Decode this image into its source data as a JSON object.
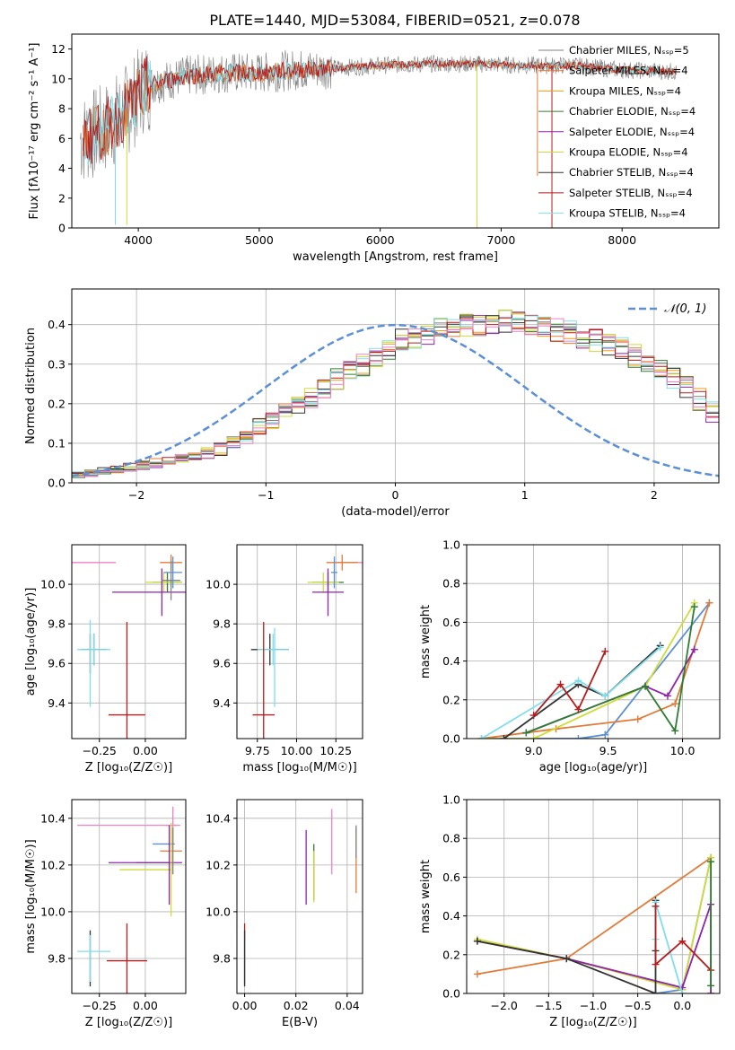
{
  "figure": {
    "title": "PLATE=1440, MJD=53084, FIBERID=0521, z=0.078"
  },
  "colors": {
    "grid": "#b0b0b0",
    "chab_miles": "#808080",
    "salp_miles": "#e07b39",
    "krou_miles": "#f39c12",
    "chab_elodie": "#2e7d32",
    "salp_elodie": "#8e24aa",
    "krou_elodie": "#cddc39",
    "chab_stelib": "#333333",
    "salp_stelib": "#b71c1c",
    "krou_stelib": "#80deea",
    "normal_curve": "#5b8fd6",
    "pink": "#ee82c5",
    "blue": "#5b8fd6",
    "orange": "#e07b39"
  },
  "chart_data": [
    {
      "id": "spectrum",
      "type": "line",
      "title": "",
      "xlabel": "wavelength [Angstrom, rest frame]",
      "ylabel": "Flux [fλ10⁻¹⁷ erg cm⁻² s⁻¹ A⁻¹]",
      "xlim": [
        3450,
        8800
      ],
      "ylim": [
        0,
        13
      ],
      "xticks": [
        4000,
        5000,
        6000,
        7000,
        8000
      ],
      "yticks": [
        0,
        2,
        4,
        6,
        8,
        10,
        12
      ],
      "legend_position": "right",
      "legend": [
        "Chabrier MILES, N_SSP=5",
        "Salpeter MILES, N_SSP=4",
        "Kroupa MILES, N_SSP=4",
        "Chabrier ELODIE, N_SSP=4",
        "Salpeter ELODIE, N_SSP=4",
        "Kroupa ELODIE, N_SSP=4",
        "Chabrier STELIB, N_SSP=4",
        "Salpeter STELIB, N_SSP=4",
        "Kroupa STELIB, N_SSP=4"
      ],
      "legend_colors": [
        "#808080",
        "#e07b39",
        "#f39c12",
        "#2e7d32",
        "#8e24aa",
        "#cddc39",
        "#333333",
        "#b71c1c",
        "#80deea"
      ],
      "continuum": {
        "x": [
          3550,
          3700,
          3850,
          3950,
          4050,
          4200,
          4400,
          4700,
          5000,
          5300,
          5600,
          6000,
          6400,
          6800,
          7200,
          7600,
          8000,
          8400,
          8700
        ],
        "y": [
          6.0,
          6.5,
          7.5,
          8.3,
          9.5,
          9.8,
          10.2,
          10.4,
          10.4,
          10.6,
          10.7,
          10.9,
          11.0,
          11.0,
          10.9,
          10.9,
          10.6,
          10.5,
          10.3
        ]
      },
      "model_lines": [
        "Chabrier MILES",
        "Salpeter MILES",
        "Kroupa STELIB",
        "Salpeter STELIB"
      ],
      "model_line_colors": [
        "#808080",
        "#e07b39",
        "#80deea",
        "#b71c1c"
      ]
    },
    {
      "id": "residuals",
      "type": "histogram",
      "title": "",
      "xlabel": "(data-model)/error",
      "ylabel": "Normed distribution",
      "xlim": [
        -2.5,
        2.5
      ],
      "ylim": [
        0,
        0.49
      ],
      "xticks": [
        -2,
        -1,
        0,
        1,
        2
      ],
      "yticks": [
        0.0,
        0.1,
        0.2,
        0.3,
        0.4
      ],
      "legend": [
        "𝒩(0, 1)"
      ],
      "legend_position": "top-right",
      "bin_edges_start": -2.5,
      "bin_width": 0.1,
      "hist_envelope": [
        0.02,
        0.025,
        0.03,
        0.035,
        0.04,
        0.045,
        0.05,
        0.055,
        0.06,
        0.065,
        0.075,
        0.085,
        0.1,
        0.115,
        0.14,
        0.16,
        0.18,
        0.2,
        0.22,
        0.24,
        0.26,
        0.28,
        0.3,
        0.32,
        0.34,
        0.36,
        0.37,
        0.38,
        0.39,
        0.395,
        0.4,
        0.4,
        0.405,
        0.41,
        0.405,
        0.4,
        0.39,
        0.385,
        0.38,
        0.37,
        0.36,
        0.35,
        0.34,
        0.32,
        0.3,
        0.28,
        0.26,
        0.24,
        0.21,
        0.18,
        0.16,
        0.14,
        0.12,
        0.1,
        0.085,
        0.075,
        0.065,
        0.055,
        0.05,
        0.04,
        0.035,
        0.03,
        0.03,
        0.035,
        0.04,
        0.045,
        0.04,
        0.035,
        0.03,
        0.025
      ]
    },
    {
      "id": "age_Z",
      "type": "errorbar",
      "xlabel": "Z [log₁₀(Z/Z☉)]",
      "ylabel": "age  [log₁₀(age/yr)]",
      "xlim": [
        -0.4,
        0.22
      ],
      "ylim": [
        9.22,
        10.2
      ],
      "xticks": [
        -0.25,
        0.0
      ],
      "yticks": [
        9.4,
        9.6,
        9.8,
        10.0
      ],
      "points": [
        {
          "x": -0.28,
          "xerr": 0.12,
          "y": 10.11,
          "yerr": 0.0,
          "c": "#ee82c5"
        },
        {
          "x": 0.14,
          "xerr": 0.06,
          "y": 10.11,
          "yerr": 0.04,
          "c": "#e07b39"
        },
        {
          "x": 0.12,
          "xerr": 0.08,
          "y": 10.01,
          "yerr": 0.05,
          "c": "#2e7d32"
        },
        {
          "x": 0.1,
          "xerr": 0.1,
          "y": 10.01,
          "yerr": 0.05,
          "c": "#cddc39"
        },
        {
          "x": 0.09,
          "xerr": 0.27,
          "y": 9.96,
          "yerr": 0.12,
          "c": "#8e24aa"
        },
        {
          "x": 0.14,
          "xerr": 0.05,
          "y": 10.02,
          "yerr": 0.1,
          "c": "#808080"
        },
        {
          "x": 0.15,
          "xerr": 0.05,
          "y": 10.06,
          "yerr": 0.08,
          "c": "#5b8fd6"
        },
        {
          "x": -0.3,
          "xerr": 0.0,
          "y": 9.65,
          "yerr": 0.1,
          "c": "#333333"
        },
        {
          "x": -0.28,
          "xerr": 0.07,
          "y": 9.67,
          "yerr": 0.08,
          "c": "#333333"
        },
        {
          "x": -0.28,
          "xerr": 0.09,
          "y": 9.67,
          "yerr": 0.08,
          "c": "#80deea"
        },
        {
          "x": -0.3,
          "xerr": 0.0,
          "y": 9.6,
          "yerr": 0.22,
          "c": "#80deea"
        },
        {
          "x": -0.1,
          "xerr": 0.1,
          "y": 9.34,
          "yerr": 0.47,
          "c": "#b71c1c"
        }
      ]
    },
    {
      "id": "age_mass",
      "type": "errorbar",
      "xlabel": "mass [log₁₀(M/M☉)]",
      "ylabel": "",
      "xlim": [
        9.62,
        10.42
      ],
      "ylim": [
        9.22,
        10.2
      ],
      "xticks": [
        9.75,
        10.0,
        10.25
      ],
      "yticks": [
        9.4,
        9.6,
        9.8,
        10.0
      ],
      "points": [
        {
          "x": 10.36,
          "xerr": 0.1,
          "y": 10.11,
          "yerr": 0.0,
          "c": "#ee82c5"
        },
        {
          "x": 10.29,
          "xerr": 0.1,
          "y": 10.11,
          "yerr": 0.04,
          "c": "#e07b39"
        },
        {
          "x": 10.2,
          "xerr": 0.1,
          "y": 10.01,
          "yerr": 0.05,
          "c": "#2e7d32"
        },
        {
          "x": 10.17,
          "xerr": 0.1,
          "y": 10.01,
          "yerr": 0.05,
          "c": "#cddc39"
        },
        {
          "x": 10.2,
          "xerr": 0.1,
          "y": 9.96,
          "yerr": 0.12,
          "c": "#8e24aa"
        },
        {
          "x": 10.24,
          "xerr": 0.02,
          "y": 10.06,
          "yerr": 0.08,
          "c": "#5b8fd6"
        },
        {
          "x": 9.83,
          "xerr": 0.12,
          "y": 9.67,
          "yerr": 0.08,
          "c": "#333333"
        },
        {
          "x": 9.85,
          "xerr": 0.1,
          "y": 9.67,
          "yerr": 0.08,
          "c": "#80deea"
        },
        {
          "x": 9.86,
          "xerr": 0.0,
          "y": 9.58,
          "yerr": 0.2,
          "c": "#80deea"
        },
        {
          "x": 9.79,
          "xerr": 0.07,
          "y": 9.34,
          "yerr": 0.47,
          "c": "#b71c1c"
        }
      ]
    },
    {
      "id": "weight_age",
      "type": "line",
      "xlabel": "age  [log₁₀(age/yr)]",
      "ylabel": "mass weight",
      "xlim": [
        8.55,
        10.25
      ],
      "ylim": [
        0,
        1.0
      ],
      "xticks": [
        9.0,
        9.5,
        10.0
      ],
      "yticks": [
        0.0,
        0.2,
        0.4,
        0.6,
        0.8,
        1.0
      ],
      "series": [
        {
          "c": "#5b8fd6",
          "x": [
            8.65,
            9.3,
            9.48,
            10.18
          ],
          "y": [
            0.0,
            0.0,
            0.02,
            0.7
          ]
        },
        {
          "c": "#e07b39",
          "x": [
            8.65,
            9.15,
            9.7,
            9.95,
            10.18
          ],
          "y": [
            0.0,
            0.05,
            0.1,
            0.18,
            0.7
          ]
        },
        {
          "c": "#cddc39",
          "x": [
            8.65,
            9.0,
            9.75,
            10.08
          ],
          "y": [
            0.0,
            0.0,
            0.27,
            0.7
          ]
        },
        {
          "c": "#8e24aa",
          "x": [
            8.95,
            9.75,
            9.9,
            10.08
          ],
          "y": [
            0.03,
            0.27,
            0.22,
            0.46
          ]
        },
        {
          "c": "#2e7d32",
          "x": [
            8.95,
            9.75,
            9.95,
            10.08
          ],
          "y": [
            0.03,
            0.27,
            0.04,
            0.68
          ]
        },
        {
          "c": "#333333",
          "x": [
            8.8,
            9.3,
            9.48,
            9.85
          ],
          "y": [
            0.0,
            0.28,
            0.22,
            0.48
          ]
        },
        {
          "c": "#80deea",
          "x": [
            8.65,
            9.3,
            9.48,
            9.85
          ],
          "y": [
            0.0,
            0.3,
            0.22,
            0.47
          ]
        },
        {
          "c": "#b71c1c",
          "x": [
            9.0,
            9.18,
            9.3,
            9.48
          ],
          "y": [
            0.12,
            0.28,
            0.15,
            0.45
          ]
        }
      ]
    },
    {
      "id": "mass_Z",
      "type": "errorbar",
      "xlabel": "Z [log₁₀(Z/Z☉)]",
      "ylabel": "mass [log₁₀(M/M☉)]",
      "xlim": [
        -0.4,
        0.22
      ],
      "ylim": [
        9.65,
        10.48
      ],
      "xticks": [
        -0.25,
        0.0
      ],
      "yticks": [
        9.8,
        10.0,
        10.2,
        10.4
      ],
      "points": [
        {
          "x": -0.1,
          "xerr": 0.27,
          "y": 10.37,
          "yerr": 0.0,
          "c": "#ee82c5"
        },
        {
          "x": 0.15,
          "xerr": 0.04,
          "y": 10.37,
          "yerr": 0.08,
          "c": "#ee82c5"
        },
        {
          "x": 0.1,
          "xerr": 0.06,
          "y": 10.29,
          "yerr": 0.0,
          "c": "#5b8fd6"
        },
        {
          "x": 0.14,
          "xerr": 0.06,
          "y": 10.26,
          "yerr": 0.1,
          "c": "#e07b39"
        },
        {
          "x": 0.05,
          "xerr": 0.1,
          "y": 10.21,
          "yerr": 0.0,
          "c": "#2e7d32"
        },
        {
          "x": 0.0,
          "xerr": 0.2,
          "y": 10.21,
          "yerr": 0.0,
          "c": "#8e24aa"
        },
        {
          "x": 0.0,
          "xerr": 0.14,
          "y": 10.18,
          "yerr": 0.0,
          "c": "#cddc39"
        },
        {
          "x": 0.13,
          "xerr": 0.0,
          "y": 10.2,
          "yerr": 0.17,
          "c": "#8e24aa"
        },
        {
          "x": 0.14,
          "xerr": 0.0,
          "y": 10.18,
          "yerr": 0.2,
          "c": "#cddc39"
        },
        {
          "x": 0.15,
          "xerr": 0.0,
          "y": 10.26,
          "yerr": 0.1,
          "c": "#808080"
        },
        {
          "x": -0.3,
          "xerr": 0.0,
          "y": 9.8,
          "yerr": 0.12,
          "c": "#333333"
        },
        {
          "x": -0.28,
          "xerr": 0.09,
          "y": 9.83,
          "yerr": 0.0,
          "c": "#80deea"
        },
        {
          "x": -0.3,
          "xerr": 0.0,
          "y": 9.8,
          "yerr": 0.1,
          "c": "#80deea"
        },
        {
          "x": -0.1,
          "xerr": 0.11,
          "y": 9.79,
          "yerr": 0.16,
          "c": "#b71c1c"
        }
      ]
    },
    {
      "id": "mass_ebv",
      "type": "errorbar",
      "xlabel": "E(B-V)",
      "ylabel": "",
      "xlim": [
        -0.003,
        0.046
      ],
      "ylim": [
        9.65,
        10.48
      ],
      "xticks": [
        0.0,
        0.02,
        0.04
      ],
      "yticks": [
        9.8,
        10.0,
        10.2,
        10.4
      ],
      "points": [
        {
          "x": 0.0,
          "xerr": 0.0,
          "y": 9.82,
          "yerr": 0.13,
          "c": "#b71c1c"
        },
        {
          "x": 0.0,
          "xerr": 0.0,
          "y": 9.78,
          "yerr": 0.1,
          "c": "#80deea"
        },
        {
          "x": 0.0,
          "xerr": 0.0,
          "y": 9.8,
          "yerr": 0.12,
          "c": "#333333"
        },
        {
          "x": 0.024,
          "xerr": 0.0,
          "y": 10.19,
          "yerr": 0.16,
          "c": "#8e24aa"
        },
        {
          "x": 0.027,
          "xerr": 0.0,
          "y": 10.17,
          "yerr": 0.12,
          "c": "#2e7d32"
        },
        {
          "x": 0.027,
          "xerr": 0.0,
          "y": 10.15,
          "yerr": 0.11,
          "c": "#cddc39"
        },
        {
          "x": 0.034,
          "xerr": 0.0,
          "y": 10.3,
          "yerr": 0.14,
          "c": "#ee82c5"
        },
        {
          "x": 0.0435,
          "xerr": 0.0,
          "y": 10.22,
          "yerr": 0.14,
          "c": "#e07b39"
        },
        {
          "x": 0.0435,
          "xerr": 0.0,
          "y": 10.3,
          "yerr": 0.07,
          "c": "#808080"
        }
      ]
    },
    {
      "id": "weight_Z",
      "type": "line",
      "xlabel": "Z [log₁₀(Z/Z☉)]",
      "ylabel": "mass weight",
      "xlim": [
        -2.42,
        0.42
      ],
      "ylim": [
        0,
        1.0
      ],
      "xticks": [
        -2.0,
        -1.5,
        -1.0,
        -0.5,
        0.0
      ],
      "yticks": [
        0.0,
        0.2,
        0.4,
        0.6,
        0.8,
        1.0
      ],
      "series": [
        {
          "c": "#5b8fd6",
          "x": [
            -0.3,
            0.0,
            0.32,
            0.0
          ],
          "y": [
            0.0,
            0.02,
            0.7,
            0.02
          ]
        },
        {
          "c": "#e07b39",
          "x": [
            -2.3,
            -1.3,
            0.32
          ],
          "y": [
            0.1,
            0.18,
            0.7
          ]
        },
        {
          "c": "#cddc39",
          "x": [
            -2.3,
            -1.3,
            0.0,
            0.32,
            0.32
          ],
          "y": [
            0.28,
            0.18,
            0.02,
            0.7,
            0.0
          ]
        },
        {
          "c": "#8e24aa",
          "x": [
            -2.3,
            -1.3,
            0.0,
            0.32,
            0.32
          ],
          "y": [
            0.27,
            0.18,
            0.03,
            0.46,
            0.0
          ]
        },
        {
          "c": "#333333",
          "x": [
            -2.3,
            -1.3,
            -0.3,
            -0.3,
            -0.3
          ],
          "y": [
            0.27,
            0.18,
            0.0,
            0.48,
            0.22
          ]
        },
        {
          "c": "#80deea",
          "x": [
            -0.3,
            -0.3,
            0.0
          ],
          "y": [
            0.28,
            0.47,
            0.0
          ]
        },
        {
          "c": "#b71c1c",
          "x": [
            -0.3,
            -0.3,
            0.0,
            0.32
          ],
          "y": [
            0.45,
            0.15,
            0.27,
            0.12
          ]
        },
        {
          "c": "#2e7d32",
          "x": [
            0.32,
            0.32
          ],
          "y": [
            0.68,
            0.04
          ]
        }
      ]
    }
  ]
}
